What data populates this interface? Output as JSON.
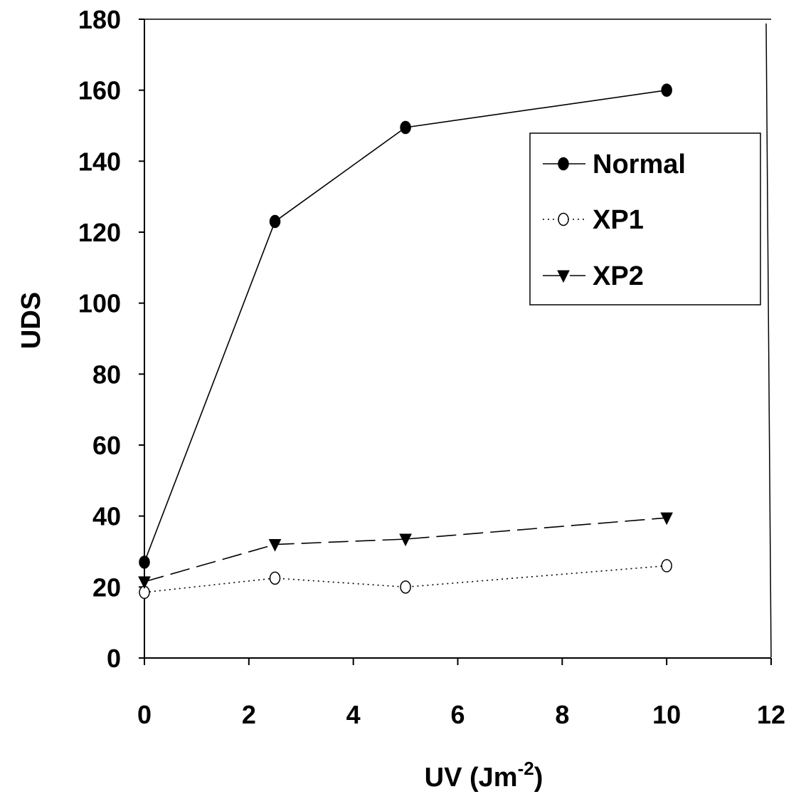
{
  "chart_data": {
    "type": "line",
    "title": "",
    "xlabel": "UV (Jm",
    "xlabel_sup": "-2",
    "xlabel_end": ")",
    "ylabel": "UDS",
    "xlim": [
      0,
      12
    ],
    "ylim": [
      0,
      180
    ],
    "x_ticks": [
      "0",
      "2",
      "4",
      "6",
      "8",
      "10",
      "12"
    ],
    "y_ticks": [
      "0",
      "20",
      "40",
      "60",
      "80",
      "100",
      "120",
      "140",
      "160",
      "180"
    ],
    "legend_placement": "top-right",
    "grid": false,
    "series": [
      {
        "name": "Normal",
        "marker": "filled-circle",
        "line": "solid",
        "x": [
          0,
          2.5,
          5,
          10
        ],
        "y": [
          27,
          123,
          149.5,
          160
        ]
      },
      {
        "name": "XP1",
        "marker": "open-circle",
        "line": "dotted",
        "x": [
          0,
          2.5,
          5,
          10
        ],
        "y": [
          18.5,
          22.5,
          20,
          26
        ]
      },
      {
        "name": "XP2",
        "marker": "filled-triangle-down",
        "line": "dashed",
        "x": [
          0,
          2.5,
          5,
          10
        ],
        "y": [
          21.5,
          32,
          33.5,
          39.5
        ]
      }
    ]
  }
}
